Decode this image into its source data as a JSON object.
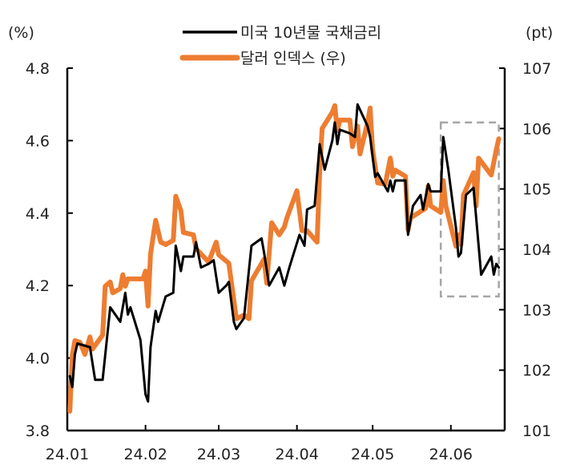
{
  "chart_data": {
    "type": "line",
    "title": "",
    "left_axis": {
      "unit_label": "(%)",
      "ylim": [
        3.8,
        4.8
      ],
      "ticks": [
        "3.8",
        "4.0",
        "4.2",
        "4.4",
        "4.6",
        "4.8"
      ]
    },
    "right_axis": {
      "unit_label": "(pt)",
      "ylim": [
        101,
        107
      ],
      "ticks": [
        "101",
        "102",
        "103",
        "104",
        "105",
        "106",
        "107"
      ]
    },
    "x_axis": {
      "range": [
        "2024-01-01",
        "2024-06-22"
      ],
      "ticks": [
        {
          "date": "2024-01-01",
          "label": "24.01"
        },
        {
          "date": "2024-02-01",
          "label": "24.02"
        },
        {
          "date": "2024-03-01",
          "label": "24.03"
        },
        {
          "date": "2024-04-01",
          "label": "24.04"
        },
        {
          "date": "2024-05-01",
          "label": "24.05"
        },
        {
          "date": "2024-06-01",
          "label": "24.06"
        }
      ]
    },
    "grid": false,
    "legend_position": "top-center",
    "series": [
      {
        "name": "미국 10년물 국채금리",
        "axis": "left",
        "color": "#000000",
        "points": [
          [
            "2024-01-02",
            3.95
          ],
          [
            "2024-01-03",
            3.92
          ],
          [
            "2024-01-04",
            4.01
          ],
          [
            "2024-01-05",
            4.04
          ],
          [
            "2024-01-10",
            4.03
          ],
          [
            "2024-01-12",
            3.94
          ],
          [
            "2024-01-15",
            3.94
          ],
          [
            "2024-01-18",
            4.14
          ],
          [
            "2024-01-22",
            4.1
          ],
          [
            "2024-01-24",
            4.18
          ],
          [
            "2024-01-25",
            4.12
          ],
          [
            "2024-01-26",
            4.14
          ],
          [
            "2024-01-30",
            4.05
          ],
          [
            "2024-02-01",
            3.9
          ],
          [
            "2024-02-02",
            3.88
          ],
          [
            "2024-02-03",
            4.03
          ],
          [
            "2024-02-05",
            4.13
          ],
          [
            "2024-02-06",
            4.1
          ],
          [
            "2024-02-09",
            4.17
          ],
          [
            "2024-02-12",
            4.18
          ],
          [
            "2024-02-13",
            4.31
          ],
          [
            "2024-02-15",
            4.24
          ],
          [
            "2024-02-16",
            4.28
          ],
          [
            "2024-02-20",
            4.28
          ],
          [
            "2024-02-21",
            4.32
          ],
          [
            "2024-02-23",
            4.25
          ],
          [
            "2024-02-26",
            4.26
          ],
          [
            "2024-02-28",
            4.27
          ],
          [
            "2024-03-01",
            4.18
          ],
          [
            "2024-03-04",
            4.2
          ],
          [
            "2024-03-05",
            4.21
          ],
          [
            "2024-03-07",
            4.1
          ],
          [
            "2024-03-08",
            4.08
          ],
          [
            "2024-03-11",
            4.11
          ],
          [
            "2024-03-14",
            4.31
          ],
          [
            "2024-03-18",
            4.33
          ],
          [
            "2024-03-19",
            4.29
          ],
          [
            "2024-03-21",
            4.2
          ],
          [
            "2024-03-25",
            4.25
          ],
          [
            "2024-03-27",
            4.2
          ],
          [
            "2024-03-29",
            4.25
          ],
          [
            "2024-04-02",
            4.34
          ],
          [
            "2024-04-04",
            4.31
          ],
          [
            "2024-04-05",
            4.41
          ],
          [
            "2024-04-08",
            4.42
          ],
          [
            "2024-04-10",
            4.59
          ],
          [
            "2024-04-12",
            4.52
          ],
          [
            "2024-04-15",
            4.6
          ],
          [
            "2024-04-16",
            4.65
          ],
          [
            "2024-04-17",
            4.59
          ],
          [
            "2024-04-18",
            4.63
          ],
          [
            "2024-04-22",
            4.62
          ],
          [
            "2024-04-24",
            4.61
          ],
          [
            "2024-04-25",
            4.7
          ],
          [
            "2024-04-29",
            4.64
          ],
          [
            "2024-04-30",
            4.61
          ],
          [
            "2024-05-02",
            4.5
          ],
          [
            "2024-05-03",
            4.51
          ],
          [
            "2024-05-07",
            4.46
          ],
          [
            "2024-05-08",
            4.49
          ],
          [
            "2024-05-09",
            4.46
          ],
          [
            "2024-05-10",
            4.49
          ],
          [
            "2024-05-14",
            4.49
          ],
          [
            "2024-05-15",
            4.34
          ],
          [
            "2024-05-17",
            4.42
          ],
          [
            "2024-05-20",
            4.45
          ],
          [
            "2024-05-21",
            4.41
          ],
          [
            "2024-05-23",
            4.48
          ],
          [
            "2024-05-24",
            4.46
          ],
          [
            "2024-05-28",
            4.46
          ],
          [
            "2024-05-29",
            4.61
          ],
          [
            "2024-05-31",
            4.52
          ],
          [
            "2024-06-03",
            4.36
          ],
          [
            "2024-06-04",
            4.28
          ],
          [
            "2024-06-05",
            4.29
          ],
          [
            "2024-06-07",
            4.45
          ],
          [
            "2024-06-10",
            4.47
          ],
          [
            "2024-06-13",
            4.23
          ],
          [
            "2024-06-17",
            4.28
          ],
          [
            "2024-06-18",
            4.23
          ],
          [
            "2024-06-19",
            4.26
          ],
          [
            "2024-06-20",
            4.25
          ]
        ]
      },
      {
        "name": "달러 인덱스 (우)",
        "axis": "right",
        "color": "#ED7D31",
        "points": [
          [
            "2024-01-02",
            101.32
          ],
          [
            "2024-01-03",
            102.25
          ],
          [
            "2024-01-04",
            102.49
          ],
          [
            "2024-01-06",
            102.46
          ],
          [
            "2024-01-08",
            102.26
          ],
          [
            "2024-01-10",
            102.55
          ],
          [
            "2024-01-11",
            102.35
          ],
          [
            "2024-01-15",
            102.58
          ],
          [
            "2024-01-16",
            103.39
          ],
          [
            "2024-01-18",
            103.46
          ],
          [
            "2024-01-19",
            103.28
          ],
          [
            "2024-01-22",
            103.35
          ],
          [
            "2024-01-23",
            103.58
          ],
          [
            "2024-01-24",
            103.39
          ],
          [
            "2024-01-25",
            103.51
          ],
          [
            "2024-01-31",
            103.51
          ],
          [
            "2024-02-01",
            103.64
          ],
          [
            "2024-02-02",
            103.06
          ],
          [
            "2024-02-03",
            103.92
          ],
          [
            "2024-02-05",
            104.48
          ],
          [
            "2024-02-07",
            104.12
          ],
          [
            "2024-02-09",
            104.08
          ],
          [
            "2024-02-12",
            104.15
          ],
          [
            "2024-02-13",
            104.88
          ],
          [
            "2024-02-15",
            104.64
          ],
          [
            "2024-02-16",
            104.28
          ],
          [
            "2024-02-20",
            104.24
          ],
          [
            "2024-02-21",
            104.01
          ],
          [
            "2024-02-26",
            103.79
          ],
          [
            "2024-02-29",
            104.12
          ],
          [
            "2024-03-01",
            103.91
          ],
          [
            "2024-03-05",
            103.77
          ],
          [
            "2024-03-08",
            102.85
          ],
          [
            "2024-03-11",
            102.91
          ],
          [
            "2024-03-13",
            102.85
          ],
          [
            "2024-03-14",
            103.48
          ],
          [
            "2024-03-19",
            103.84
          ],
          [
            "2024-03-20",
            103.44
          ],
          [
            "2024-03-22",
            104.44
          ],
          [
            "2024-03-25",
            104.24
          ],
          [
            "2024-03-27",
            104.37
          ],
          [
            "2024-03-28",
            104.52
          ],
          [
            "2024-04-01",
            104.97
          ],
          [
            "2024-04-03",
            104.31
          ],
          [
            "2024-04-05",
            104.31
          ],
          [
            "2024-04-09",
            104.12
          ],
          [
            "2024-04-10",
            105.25
          ],
          [
            "2024-04-11",
            106.0
          ],
          [
            "2024-04-15",
            106.27
          ],
          [
            "2024-04-16",
            106.38
          ],
          [
            "2024-04-17",
            105.96
          ],
          [
            "2024-04-18",
            106.14
          ],
          [
            "2024-04-22",
            106.14
          ],
          [
            "2024-04-23",
            105.7
          ],
          [
            "2024-04-25",
            106.04
          ],
          [
            "2024-04-26",
            105.58
          ],
          [
            "2024-04-29",
            106.1
          ],
          [
            "2024-04-30",
            106.34
          ],
          [
            "2024-05-01",
            105.65
          ],
          [
            "2024-05-03",
            105.1
          ],
          [
            "2024-05-06",
            105.08
          ],
          [
            "2024-05-08",
            105.51
          ],
          [
            "2024-05-09",
            105.21
          ],
          [
            "2024-05-10",
            105.31
          ],
          [
            "2024-05-14",
            105.21
          ],
          [
            "2024-05-15",
            104.32
          ],
          [
            "2024-05-16",
            104.52
          ],
          [
            "2024-05-22",
            104.68
          ],
          [
            "2024-05-23",
            105.05
          ],
          [
            "2024-05-24",
            104.72
          ],
          [
            "2024-05-28",
            104.61
          ],
          [
            "2024-05-29",
            105.14
          ],
          [
            "2024-05-30",
            104.72
          ],
          [
            "2024-06-03",
            104.05
          ],
          [
            "2024-06-04",
            104.24
          ],
          [
            "2024-06-05",
            104.08
          ],
          [
            "2024-06-06",
            104.9
          ],
          [
            "2024-06-10",
            105.27
          ],
          [
            "2024-06-11",
            104.72
          ],
          [
            "2024-06-12",
            105.51
          ],
          [
            "2024-06-17",
            105.23
          ],
          [
            "2024-06-19",
            105.65
          ],
          [
            "2024-06-20",
            105.83
          ]
        ]
      }
    ],
    "annotations": [
      {
        "type": "dashed-box",
        "color": "#A6A6A6",
        "x_from": "2024-05-28",
        "x_to": "2024-06-20",
        "left_y_from": 4.17,
        "left_y_to": 4.65
      }
    ]
  }
}
